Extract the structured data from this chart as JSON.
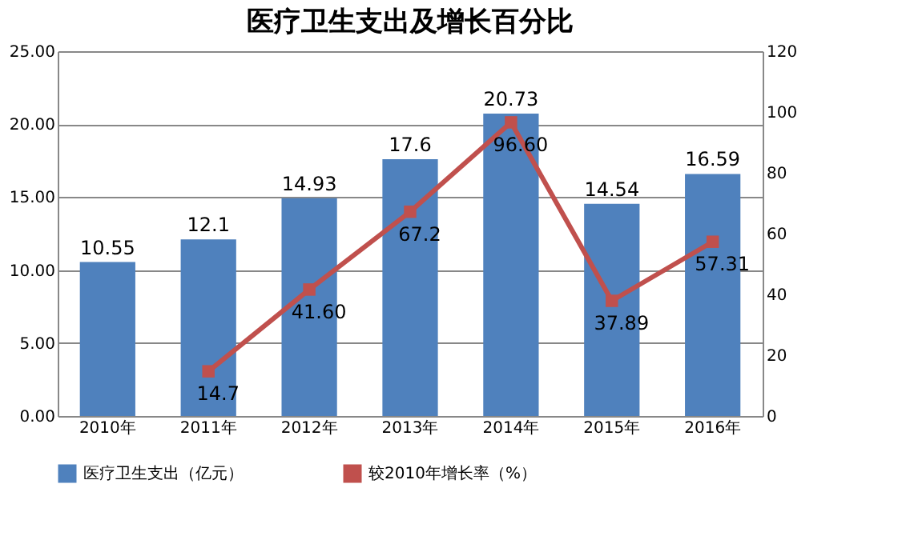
{
  "chart_data": {
    "type": "bar",
    "title": "医疗卫生支出及增长百分比",
    "categories": [
      "2010年",
      "2011年",
      "2012年",
      "2013年",
      "2014年",
      "2015年",
      "2016年"
    ],
    "series": [
      {
        "name": "医疗卫生支出（亿元）",
        "color": "#4f81bd",
        "values": [
          10.55,
          12.1,
          14.93,
          17.6,
          20.73,
          14.54,
          16.59
        ],
        "value_labels": [
          "10.55",
          "12.1",
          "14.93",
          "17.6",
          "20.73",
          "14.54",
          "16.59"
        ]
      },
      {
        "name": "较2010年增长率（%）",
        "type": "line",
        "axis": "y2",
        "color": "#c0504d",
        "marker": "square",
        "values": [
          null,
          14.7,
          41.6,
          67.2,
          96.6,
          37.89,
          57.31
        ],
        "value_labels": [
          null,
          "14.7",
          "41.60",
          "67.2",
          "96.60",
          "37.89",
          "57.31"
        ]
      }
    ],
    "ylim": [
      0,
      25
    ],
    "yticks": [
      {
        "value": 0,
        "label": "0.00"
      },
      {
        "value": 5,
        "label": "5.00"
      },
      {
        "value": 10,
        "label": "10.00"
      },
      {
        "value": 15,
        "label": "15.00"
      },
      {
        "value": 20,
        "label": "20.00"
      },
      {
        "value": 25,
        "label": "25.00"
      }
    ],
    "y2lim": [
      0,
      120
    ],
    "y2ticks": [
      0,
      20,
      40,
      60,
      80,
      100,
      120
    ],
    "grid": "y",
    "legend": "bottom"
  }
}
